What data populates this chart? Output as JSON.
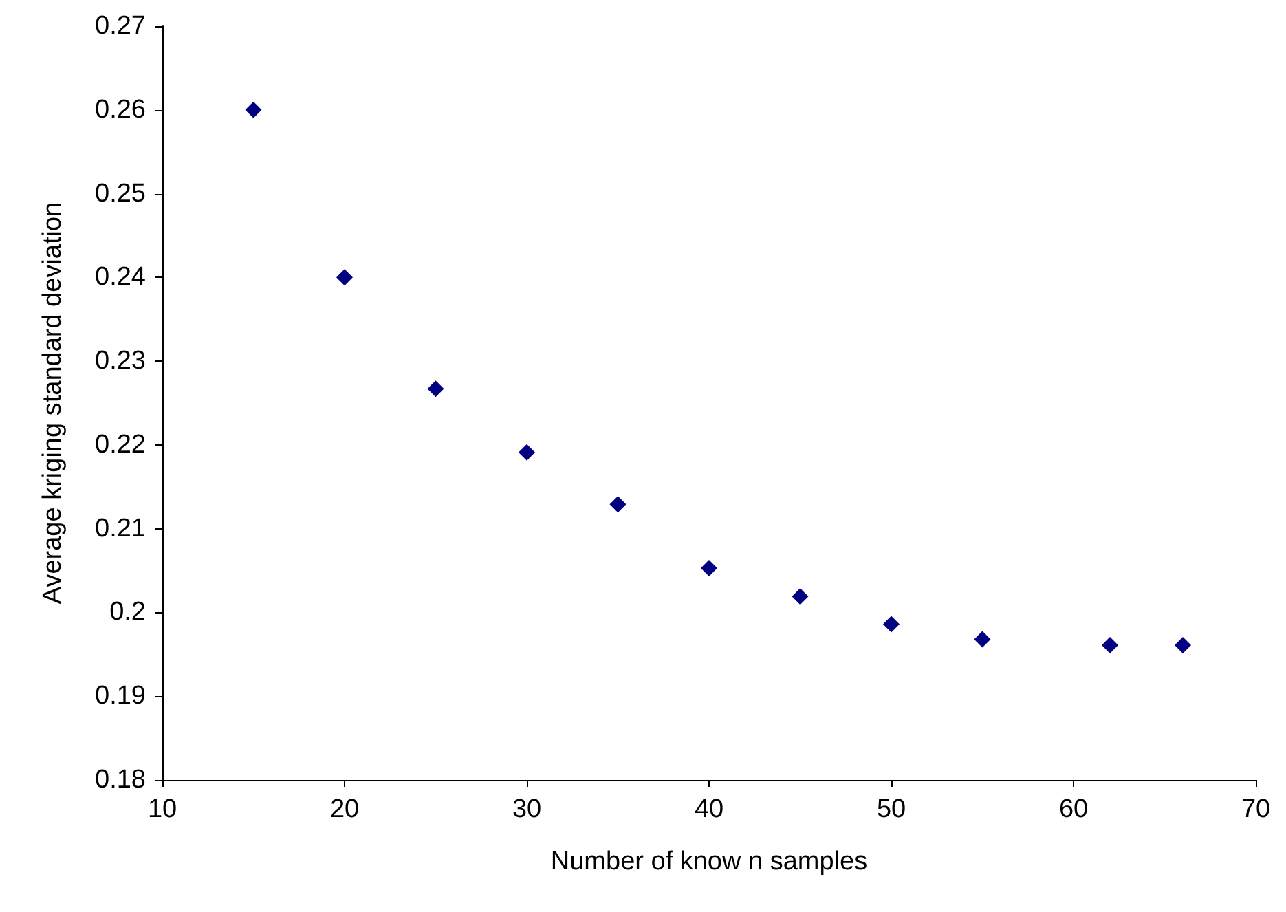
{
  "chart_data": {
    "type": "scatter",
    "xlabel": "Number of know n samples",
    "ylabel": "Average kriging standard deviation",
    "x": [
      15,
      20,
      25,
      30,
      35,
      40,
      45,
      50,
      55,
      62,
      66
    ],
    "series": [
      {
        "color": "#000080",
        "values": [
          0.26,
          0.24,
          0.2267,
          0.2191,
          0.2129,
          0.2053,
          0.2019,
          0.1986,
          0.1968,
          0.1961,
          0.1961
        ]
      }
    ],
    "xlim": [
      10,
      70
    ],
    "xticks": [
      10,
      20,
      30,
      40,
      50,
      60,
      70
    ],
    "ylim": [
      0.18,
      0.27
    ],
    "yticks": [
      0.18,
      0.19,
      0.2,
      0.21,
      0.22,
      0.23,
      0.24,
      0.25,
      0.26,
      0.27
    ],
    "grid": false,
    "marker": "diamond"
  }
}
